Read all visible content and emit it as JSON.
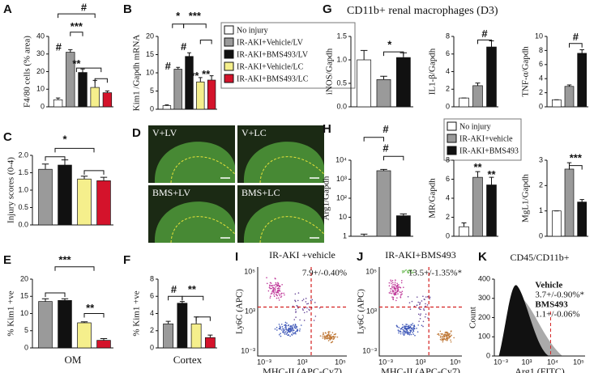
{
  "chart_data": [
    {
      "type": "bar",
      "panel": "A",
      "ylabel": "F4/80 cells (% area)",
      "ylim": [
        0,
        40
      ],
      "yticks": [
        0,
        10,
        20,
        30,
        40
      ],
      "values": [
        4,
        31,
        19.5,
        11,
        8
      ],
      "errors": [
        1,
        1.5,
        2,
        4,
        1
      ],
      "colors": [
        "#ffffff",
        "#9a9a9a",
        "#111111",
        "#f5ef8c",
        "#d4132b"
      ],
      "annotations": [
        "#",
        "***",
        "#",
        "**"
      ]
    },
    {
      "type": "bar",
      "panel": "B",
      "ylabel": "Kim1 /Gapdh mRNA",
      "ylim": [
        0,
        20
      ],
      "yticks": [
        0,
        5,
        10,
        15,
        20
      ],
      "values": [
        1,
        11,
        14.5,
        7.5,
        8
      ],
      "errors": [
        0.2,
        0.5,
        1,
        1.2,
        1.2
      ],
      "colors": [
        "#ffffff",
        "#9a9a9a",
        "#111111",
        "#f5ef8c",
        "#d4132b"
      ],
      "annotations": [
        "*",
        "***",
        "#",
        "#",
        "**",
        "**"
      ],
      "legend": [
        {
          "name": "No injury",
          "color": "#ffffff"
        },
        {
          "name": "IR-AKI+Vehicle/LV",
          "color": "#9a9a9a"
        },
        {
          "name": "IR-AKI+BMS493/LV",
          "color": "#111111"
        },
        {
          "name": "IR-AKI+Vehicle/LC",
          "color": "#f5ef8c"
        },
        {
          "name": "IR-AKI+BMS493/LC",
          "color": "#d4132b"
        }
      ]
    },
    {
      "type": "bar",
      "panel": "C",
      "ylabel": "Injury scores (0-4)",
      "ylim": [
        0,
        2
      ],
      "yticks": [
        {
          "value": 0,
          "label": "0.0"
        },
        {
          "value": 0.5,
          "label": "0.5"
        },
        {
          "value": 1,
          "label": "1.0"
        },
        {
          "value": 1.5,
          "label": "1.5"
        },
        {
          "value": 2,
          "label": "2.0"
        }
      ],
      "values": [
        1.6,
        1.72,
        1.32,
        1.27
      ],
      "errors": [
        0.15,
        0.15,
        0.08,
        0.1
      ],
      "colors": [
        "#9a9a9a",
        "#111111",
        "#f5ef8c",
        "#d4132b"
      ],
      "annotations": [
        "*"
      ]
    },
    {
      "type": "image",
      "panel": "D",
      "labels": [
        "V+LV",
        "V+LC",
        "BMS+LV",
        "BMS+LC"
      ]
    },
    {
      "type": "bar",
      "panel": "E",
      "ylabel": "% Kim1 +ve",
      "xlabel": "OM",
      "ylim": [
        0,
        20
      ],
      "yticks": [
        0,
        5,
        10,
        15,
        20
      ],
      "values": [
        13.5,
        13.8,
        7.3,
        2.2
      ],
      "errors": [
        0.8,
        0.5,
        0.3,
        0.5
      ],
      "colors": [
        "#9a9a9a",
        "#111111",
        "#f5ef8c",
        "#d4132b"
      ],
      "annotations": [
        "***",
        "**"
      ]
    },
    {
      "type": "bar",
      "panel": "F",
      "ylabel": "% Kim1 +ve",
      "xlabel": "Cortex",
      "ylim": [
        0,
        8
      ],
      "yticks": [
        0,
        2,
        4,
        6,
        8
      ],
      "values": [
        2.8,
        5.2,
        2.8,
        1.2
      ],
      "errors": [
        0.3,
        0.2,
        0.8,
        0.3
      ],
      "colors": [
        "#9a9a9a",
        "#111111",
        "#f5ef8c",
        "#d4132b"
      ],
      "annotations": [
        "#",
        "**"
      ]
    },
    {
      "type": "bar",
      "panel": "G",
      "group_title": "CD11b+ renal macrophages (D3)",
      "ylabel": "iNOS/Gapdh",
      "ylim": [
        0,
        1.5
      ],
      "yticks": [
        {
          "value": 0,
          "label": "0.0"
        },
        {
          "value": 0.5,
          "label": "0.5"
        },
        {
          "value": 1,
          "label": "1.0"
        },
        {
          "value": 1.5,
          "label": "1.5"
        }
      ],
      "values": [
        1.0,
        0.58,
        1.05
      ],
      "errors": [
        0.2,
        0.07,
        0.1
      ],
      "colors": [
        "#ffffff",
        "#9a9a9a",
        "#111111"
      ],
      "annotations": [
        "*"
      ]
    },
    {
      "type": "bar",
      "ylabel": "IL1-β/Gapdh",
      "ylim": [
        0,
        8
      ],
      "yticks": [
        0,
        2,
        4,
        6,
        8
      ],
      "values": [
        1,
        2.4,
        6.8
      ],
      "errors": [
        0,
        0.3,
        0.7
      ],
      "colors": [
        "#ffffff",
        "#9a9a9a",
        "#111111"
      ],
      "annotations": [
        "#"
      ]
    },
    {
      "type": "bar",
      "ylabel": "TNF-α/Gapdh",
      "ylim": [
        0,
        10
      ],
      "yticks": [
        0,
        2,
        4,
        6,
        8,
        10
      ],
      "values": [
        1,
        2.9,
        7.6
      ],
      "errors": [
        0,
        0.2,
        0.5
      ],
      "colors": [
        "#ffffff",
        "#9a9a9a",
        "#111111"
      ],
      "annotations": [
        "#"
      ]
    },
    {
      "type": "bar",
      "panel": "H",
      "ylabel": "Arg1/Gapdh",
      "log": true,
      "ylim": [
        1,
        10000
      ],
      "yticks": [
        1,
        10,
        {
          "value": 100,
          "label": "10²"
        },
        {
          "value": 1000,
          "label": "10³"
        },
        {
          "value": 10000,
          "label": "10⁴"
        }
      ],
      "values": [
        1,
        2800,
        12
      ],
      "errors": [
        0.3,
        500,
        3
      ],
      "colors": [
        "#ffffff",
        "#9a9a9a",
        "#111111"
      ],
      "annotations": [
        "#",
        "#"
      ],
      "legend": [
        {
          "name": "No injury",
          "color": "#ffffff"
        },
        {
          "name": "IR-AKI+vehicle",
          "color": "#9a9a9a"
        },
        {
          "name": "IR-AKI+BMS493",
          "color": "#111111"
        }
      ]
    },
    {
      "type": "bar",
      "ylabel": "MR/Gapdh",
      "ylim": [
        0,
        8
      ],
      "yticks": [
        0,
        2,
        4,
        6,
        8
      ],
      "values": [
        1,
        6.2,
        5.4
      ],
      "errors": [
        0.4,
        0.6,
        0.8
      ],
      "colors": [
        "#ffffff",
        "#9a9a9a",
        "#111111"
      ],
      "annotations": [
        "**",
        "**"
      ]
    },
    {
      "type": "bar",
      "ylabel": "MgL1/Gapdh",
      "ylim": [
        0,
        3
      ],
      "yticks": [
        0,
        1,
        2,
        3
      ],
      "values": [
        1,
        2.65,
        1.35
      ],
      "errors": [
        0,
        0.25,
        0.1
      ],
      "colors": [
        "#ffffff",
        "#9a9a9a",
        "#111111"
      ],
      "annotations": [
        "***"
      ]
    },
    {
      "type": "flow",
      "panel": "I",
      "title": "IR-AKI +vehicle",
      "stat": "7.9+/-0.40%",
      "ylabel": "Ly6C (APC)",
      "xlabel": "MHC-II (APC-Cy7)",
      "xtick_labels": [
        "10⁻³",
        "10³",
        "10⁵"
      ],
      "ytick_labels": [
        "10⁻³",
        "10³",
        "10⁵"
      ]
    },
    {
      "type": "flow",
      "panel": "J",
      "title": "IR-AKI+BMS493",
      "stat": "13.5+/-1.35%*",
      "ylabel": "Ly6C (APC)",
      "xlabel": "MHC-II (APC-Cy7)",
      "xtick_labels": [
        "10⁻³",
        "10³",
        "10⁵"
      ],
      "ytick_labels": [
        "10⁻³",
        "10³",
        "10⁵"
      ]
    },
    {
      "type": "overlay",
      "panel": "K",
      "title": "CD45/CD11b+",
      "ylabel": "Count",
      "xlabel": "Arg1 (FITC)",
      "ylim": [
        0,
        400
      ],
      "yticks": [
        0,
        100,
        200,
        300,
        400
      ],
      "xtick_labels": [
        "10⁻³",
        "10³",
        "10⁴",
        "10⁵"
      ],
      "annotations": [
        "Vehicle",
        "3.7+/-0.90%*",
        "BMS493",
        "1.1+/-0.06%"
      ]
    }
  ]
}
